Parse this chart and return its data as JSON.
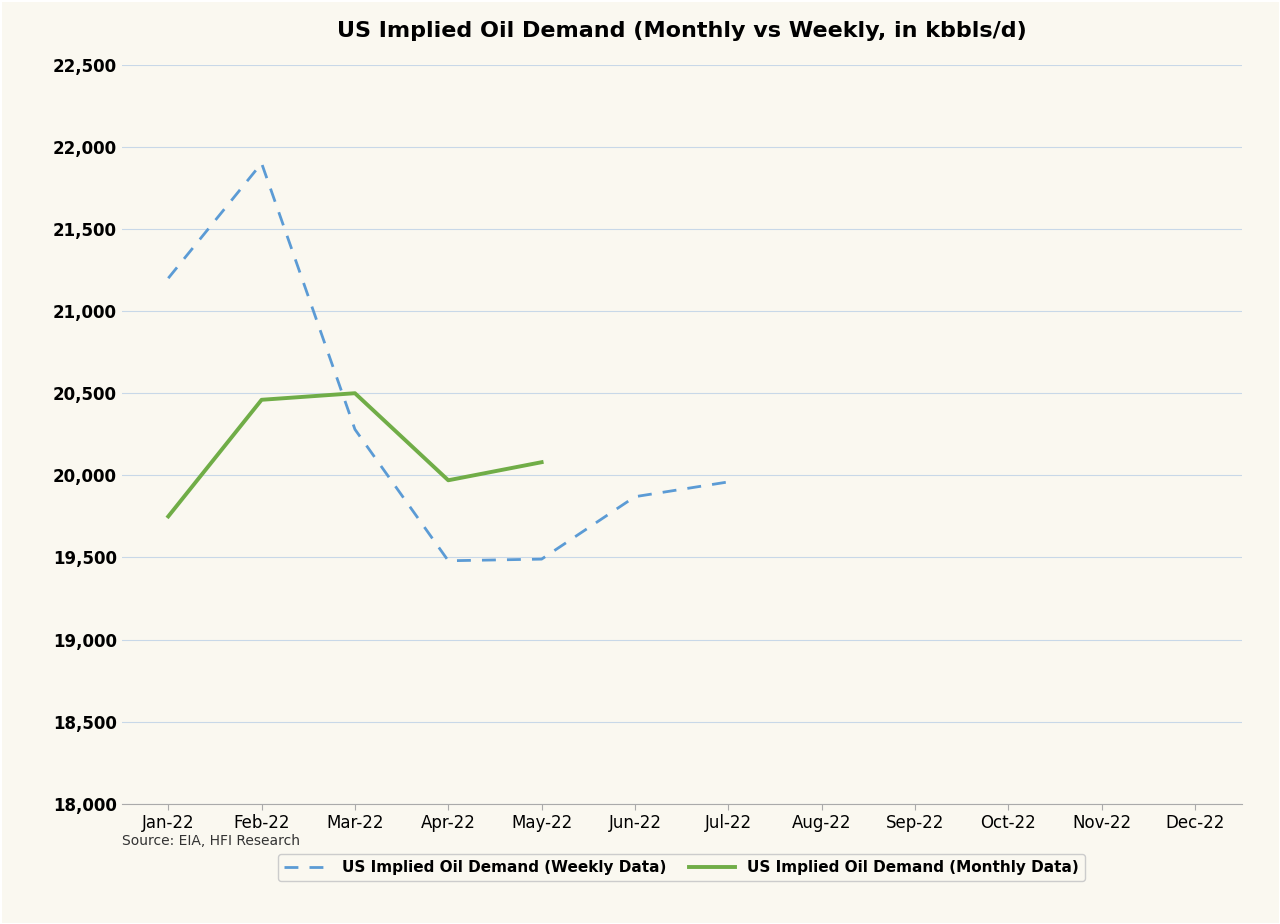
{
  "title": "US Implied Oil Demand (Monthly vs Weekly, in kbbls/d)",
  "background_color": "#faf8f0",
  "plot_background_color": "#faf8f0",
  "weekly_label": "US Implied Oil Demand (Weekly Data)",
  "monthly_label": "US Implied Oil Demand (Monthly Data)",
  "x_labels": [
    "Jan-22",
    "Feb-22",
    "Mar-22",
    "Apr-22",
    "May-22",
    "Jun-22",
    "Jul-22",
    "Aug-22",
    "Sep-22",
    "Oct-22",
    "Nov-22",
    "Dec-22"
  ],
  "weekly_x": [
    0,
    1,
    2,
    3,
    4,
    5,
    6
  ],
  "weekly_y": [
    21200,
    21900,
    20280,
    19480,
    19490,
    19870,
    19960
  ],
  "monthly_x": [
    0,
    1,
    2,
    3,
    4
  ],
  "monthly_y": [
    19750,
    20460,
    20500,
    19970,
    20080
  ],
  "weekly_color": "#5b9bd5",
  "monthly_color": "#70ad47",
  "ylim_min": 18000,
  "ylim_max": 22500,
  "yticks": [
    18000,
    18500,
    19000,
    19500,
    20000,
    20500,
    21000,
    21500,
    22000,
    22500
  ],
  "grid_color": "#c8d8e8",
  "source_text": "Source: EIA, HFI Research",
  "title_fontsize": 16,
  "tick_fontsize": 12,
  "legend_fontsize": 11,
  "line_width": 2.0,
  "border_color": "#000000"
}
